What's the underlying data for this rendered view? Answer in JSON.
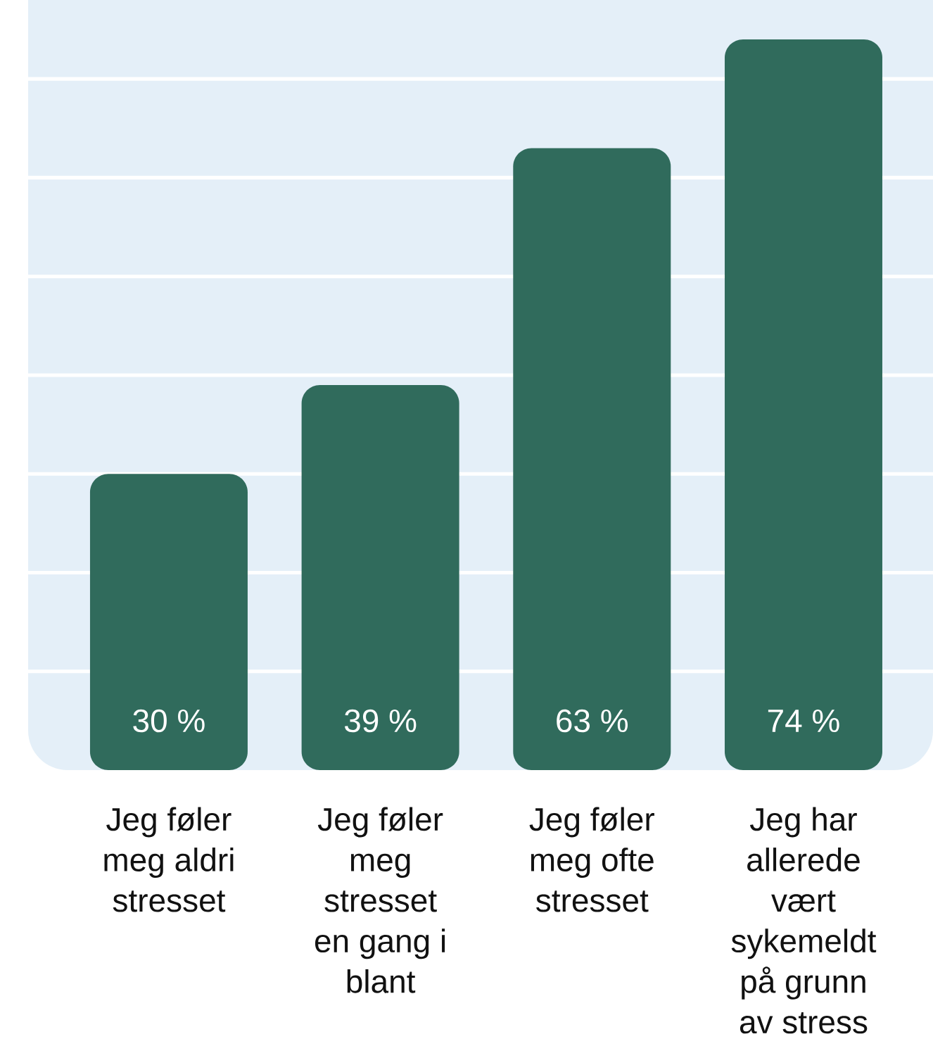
{
  "chart_data": {
    "type": "bar",
    "categories": [
      "Jeg føler meg aldri stresset",
      "Jeg føler meg stresset en gang i blant",
      "Jeg føler meg ofte stresset",
      "Jeg har allerede vært sykemeldt på grunn av stress"
    ],
    "values": [
      30,
      39,
      63,
      74
    ],
    "value_labels": [
      "30 %",
      "39 %",
      "63 %",
      "74 %"
    ],
    "color": "#306b5c",
    "ylim": [
      0,
      78
    ],
    "yticks": [
      {
        "value": 10,
        "label": null
      },
      {
        "value": 20,
        "label": null
      },
      {
        "value": 30,
        "label": null
      },
      {
        "value": 40,
        "label": null
      },
      {
        "value": 50,
        "label": null
      },
      {
        "value": 60,
        "label": null
      },
      {
        "value": 70,
        "label": null
      }
    ],
    "grid": "y",
    "tick_labels": "x"
  }
}
